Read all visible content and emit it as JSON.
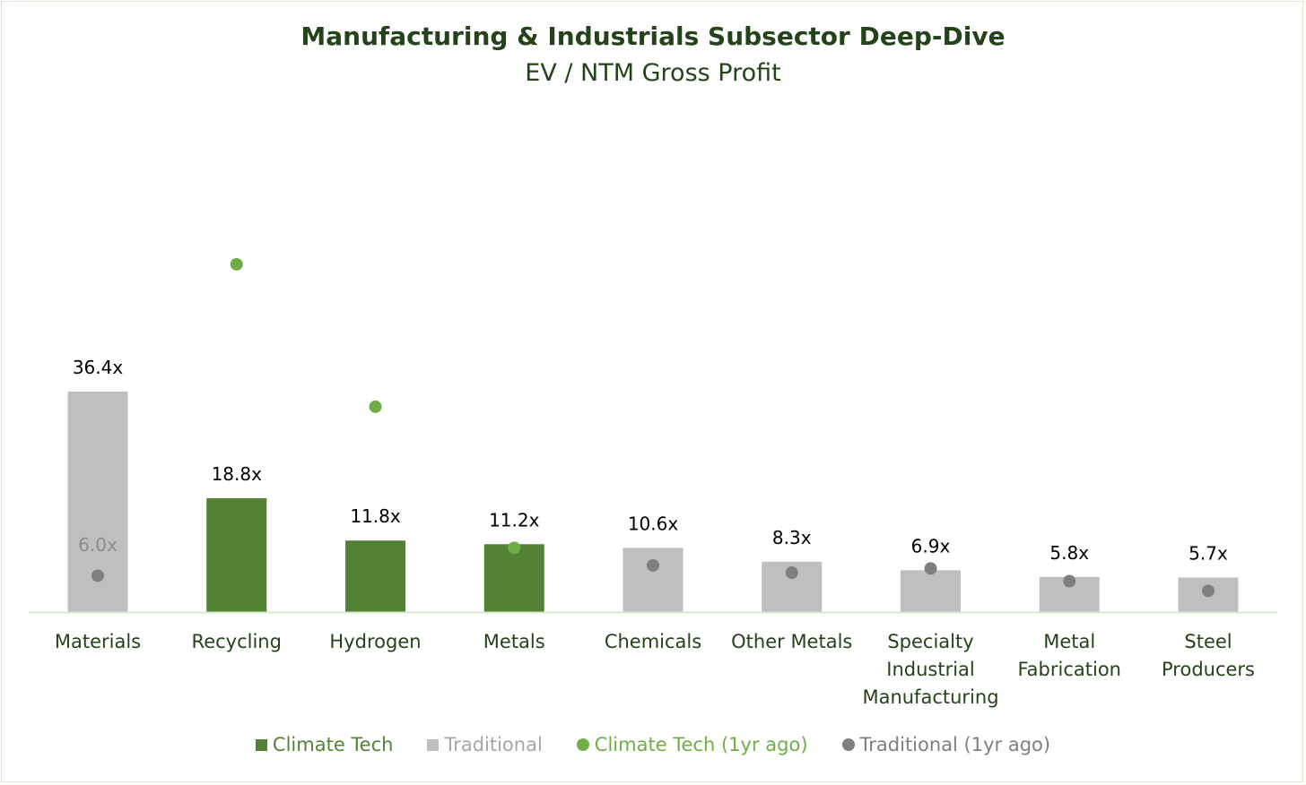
{
  "chart_data": {
    "type": "bar",
    "title": "Manufacturing & Industrials Subsector Deep-Dive",
    "subtitle": "EV / NTM Gross Profit",
    "categories": [
      "Materials",
      "Recycling",
      "Hydrogen",
      "Metals",
      "Chemicals",
      "Other Metals",
      "Specialty Industrial Manufacturing",
      "Metal Fabrication",
      "Steel Producers"
    ],
    "category_lines": [
      [
        "Materials"
      ],
      [
        "Recycling"
      ],
      [
        "Hydrogen"
      ],
      [
        "Metals"
      ],
      [
        "Chemicals"
      ],
      [
        "Other Metals"
      ],
      [
        "Specialty",
        "Industrial",
        "Manufacturing"
      ],
      [
        "Metal",
        "Fabrication"
      ],
      [
        "Steel",
        "Producers"
      ]
    ],
    "values": [
      36.4,
      18.8,
      11.8,
      11.2,
      10.6,
      8.3,
      6.9,
      5.8,
      5.7
    ],
    "value_labels": [
      "36.4x",
      "18.8x",
      "11.8x",
      "11.2x",
      "10.6x",
      "8.3x",
      "6.9x",
      "5.8x",
      "5.7x"
    ],
    "groups": [
      "Traditional",
      "Climate Tech",
      "Climate Tech",
      "Climate Tech",
      "Traditional",
      "Traditional",
      "Traditional",
      "Traditional",
      "Traditional"
    ],
    "prior_year": [
      6.0,
      57.4,
      33.9,
      10.6,
      7.7,
      6.5,
      7.2,
      5.1,
      3.5
    ],
    "annotations": [
      {
        "category": "Materials",
        "text": "6.0x"
      }
    ],
    "ylim": [
      0,
      80
    ],
    "legend": [
      {
        "name": "Climate Tech",
        "marker": "square",
        "color": "#548235"
      },
      {
        "name": "Traditional",
        "marker": "square",
        "color": "#bfbfbf"
      },
      {
        "name": "Climate Tech (1yr ago)",
        "marker": "dot",
        "color": "#70ad47"
      },
      {
        "name": "Traditional (1yr ago)",
        "marker": "dot",
        "color": "#7f7f7f"
      }
    ],
    "legend_position": "bottom",
    "grid": false
  },
  "colors": {
    "climate_tech": "#548235",
    "traditional": "#bfbfbf",
    "climate_tech_prior": "#70ad47",
    "traditional_prior": "#7f7f7f",
    "title": "#25431a",
    "axis": "#d9e8cf",
    "annotation": "#8c8c8c"
  }
}
